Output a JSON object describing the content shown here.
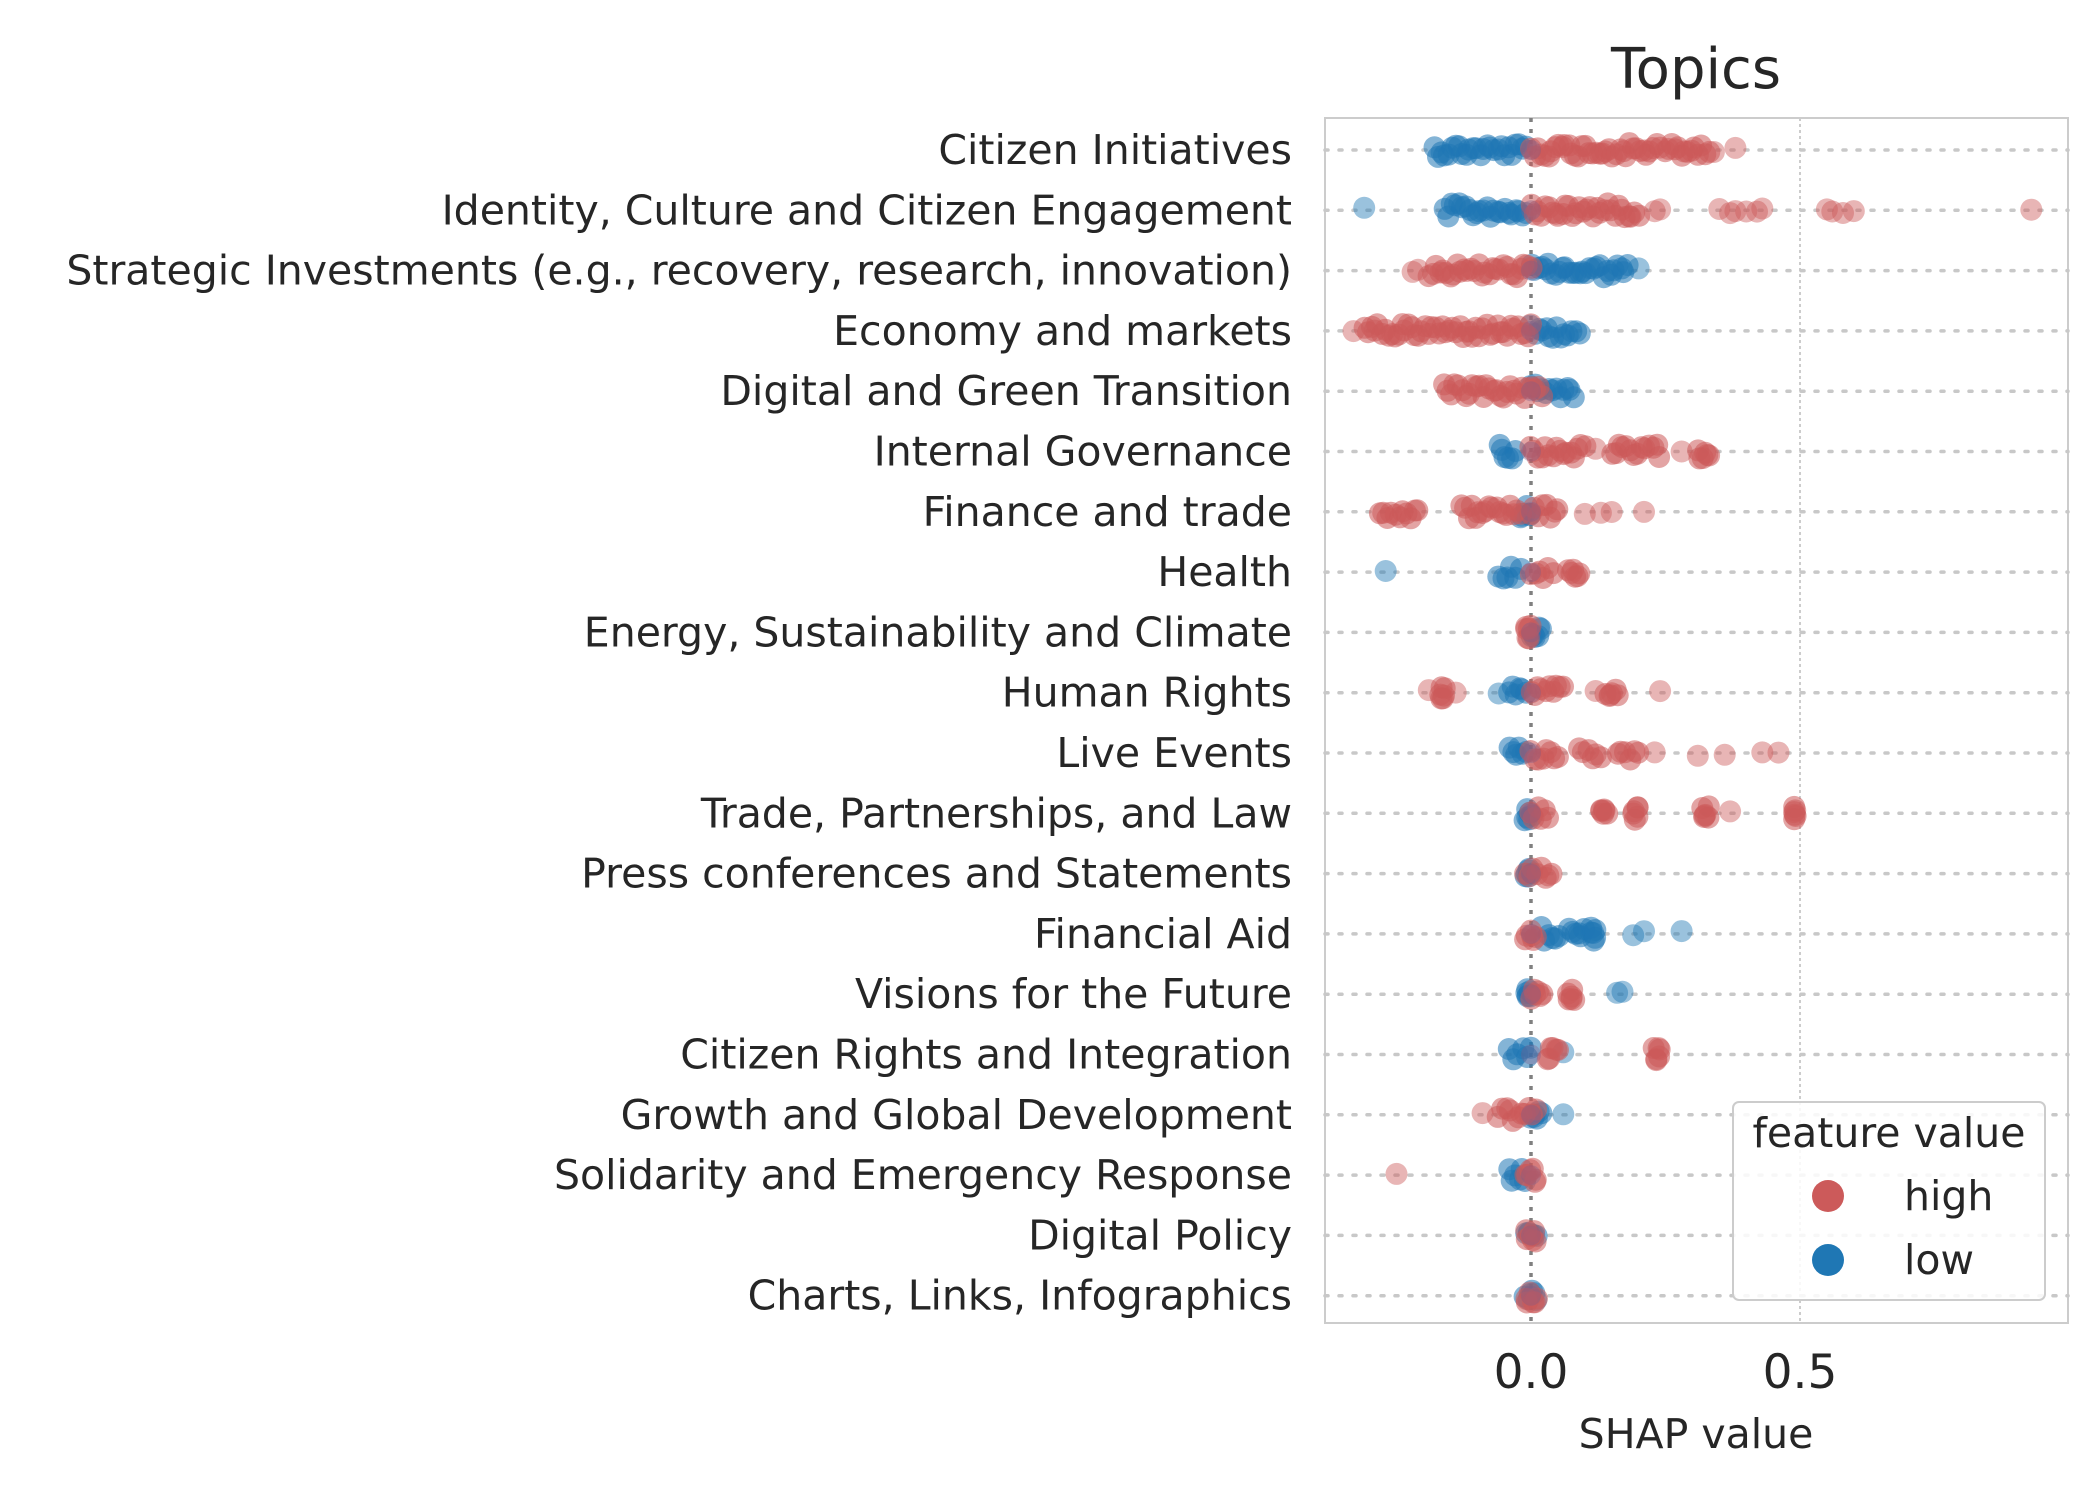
{
  "chart_data": {
    "type": "scatter",
    "title": "Topics",
    "xlabel": "SHAP value",
    "ylabel": "",
    "xlim": [
      -0.38,
      0.98
    ],
    "xticks": [
      0.0,
      0.5
    ],
    "xtick_labels": [
      "0.0",
      "0.5"
    ],
    "grid": true,
    "legend": {
      "title": "feature value",
      "placement": "lower-right",
      "entries": [
        {
          "label": "high",
          "color": "#cc5a5a"
        },
        {
          "label": "low",
          "color": "#1f77b4"
        }
      ]
    },
    "colors": {
      "high": "#cc5a5a",
      "low": "#1f77b4",
      "mixed": "#7a5d8a"
    },
    "categories": [
      "Citizen Initiatives",
      "Identity, Culture and Citizen Engagement",
      "Strategic Investments (e.g., recovery, research, innovation)",
      "Economy and markets",
      "Digital and Green Transition",
      "Internal Governance",
      "Finance and trade",
      "Health",
      "Energy, Sustainability and Climate",
      "Human Rights",
      "Live Events",
      "Trade, Partnerships, and Law",
      "Press conferences and Statements",
      "Financial Aid",
      "Visions for the Future",
      "Citizen Rights and Integration",
      "Growth and Global Development",
      "Solidarity and Emergency Response",
      "Digital Policy",
      "Charts, Links, Infographics"
    ],
    "series": [
      {
        "name": "high",
        "rows": [
          {
            "clusters": [
              [
                0.0,
                0.33
              ]
            ],
            "points": [
              0.34,
              0.38
            ]
          },
          {
            "clusters": [
              [
                0.0,
                0.2
              ]
            ],
            "points": [
              0.23,
              0.24,
              0.35,
              0.37,
              0.38,
              0.4,
              0.42,
              0.43,
              0.55,
              0.56,
              0.58,
              0.6,
              0.93
            ]
          },
          {
            "clusters": [
              [
                -0.19,
                0.0
              ]
            ],
            "points": [
              -0.22,
              -0.21
            ]
          },
          {
            "clusters": [
              [
                -0.31,
                0.0
              ]
            ],
            "points": [
              -0.33
            ]
          },
          {
            "clusters": [
              [
                -0.16,
                0.02
              ]
            ],
            "points": []
          },
          {
            "clusters": [
              [
                0.0,
                0.1
              ],
              [
                0.15,
                0.24
              ],
              [
                0.31,
                0.33
              ]
            ],
            "points": [
              0.12,
              0.28
            ]
          },
          {
            "clusters": [
              [
                -0.28,
                -0.21
              ],
              [
                -0.13,
                -0.02
              ],
              [
                0.0,
                0.05
              ]
            ],
            "points": [
              0.1,
              0.13,
              0.15,
              0.21
            ]
          },
          {
            "clusters": [
              [
                0.0,
                0.04
              ],
              [
                0.07,
                0.09
              ]
            ],
            "points": []
          },
          {
            "clusters": [
              [
                -0.01,
                0.0
              ]
            ],
            "points": []
          },
          {
            "clusters": [
              [
                -0.17,
                -0.16
              ],
              [
                0.0,
                0.06
              ],
              [
                0.14,
                0.16
              ]
            ],
            "points": [
              -0.19,
              -0.14,
              0.12,
              0.24
            ]
          },
          {
            "clusters": [
              [
                0.0,
                0.05
              ],
              [
                0.09,
                0.13
              ],
              [
                0.16,
                0.2
              ]
            ],
            "points": [
              0.23,
              0.31,
              0.36,
              0.43,
              0.46
            ]
          },
          {
            "clusters": [
              [
                0.0,
                0.03
              ],
              [
                0.13,
                0.14
              ],
              [
                0.19,
                0.2
              ],
              [
                0.32,
                0.33
              ],
              [
                0.49,
                0.49
              ]
            ],
            "points": [
              0.37
            ]
          },
          {
            "clusters": [
              [
                -0.01,
                0.04
              ]
            ],
            "points": []
          },
          {
            "clusters": [
              [
                -0.01,
                0.01
              ]
            ],
            "points": []
          },
          {
            "clusters": [
              [
                0.0,
                0.02
              ],
              [
                0.07,
                0.08
              ]
            ],
            "points": []
          },
          {
            "clusters": [
              [
                0.03,
                0.05
              ],
              [
                0.23,
                0.24
              ]
            ],
            "points": []
          },
          {
            "clusters": [
              [
                -0.06,
                0.01
              ]
            ],
            "points": [
              -0.09
            ]
          },
          {
            "clusters": [
              [
                -0.01,
                0.01
              ]
            ],
            "points": [
              -0.25
            ]
          },
          {
            "clusters": [
              [
                -0.01,
                0.01
              ]
            ],
            "points": []
          },
          {
            "clusters": [
              [
                -0.01,
                0.01
              ]
            ],
            "points": []
          }
        ]
      },
      {
        "name": "low",
        "rows": [
          {
            "clusters": [
              [
                -0.18,
                -0.01
              ]
            ],
            "points": []
          },
          {
            "clusters": [
              [
                -0.16,
                -0.01
              ]
            ],
            "points": [
              -0.31
            ]
          },
          {
            "clusters": [
              [
                0.0,
                0.18
              ]
            ],
            "points": [
              0.2
            ]
          },
          {
            "clusters": [
              [
                0.0,
                0.09
              ]
            ],
            "points": []
          },
          {
            "clusters": [
              [
                0.0,
                0.08
              ]
            ],
            "points": []
          },
          {
            "clusters": [
              [
                -0.06,
                -0.03
              ]
            ],
            "points": []
          },
          {
            "clusters": [
              [
                -0.02,
                0.0
              ]
            ],
            "points": []
          },
          {
            "clusters": [
              [
                -0.06,
                -0.02
              ]
            ],
            "points": [
              -0.27
            ]
          },
          {
            "clusters": [
              [
                0.0,
                0.02
              ]
            ],
            "points": []
          },
          {
            "clusters": [
              [
                -0.04,
                -0.01
              ]
            ],
            "points": [
              -0.06
            ]
          },
          {
            "clusters": [
              [
                -0.04,
                -0.01
              ]
            ],
            "points": []
          },
          {
            "clusters": [
              [
                -0.01,
                0.0
              ]
            ],
            "points": []
          },
          {
            "clusters": [
              [
                -0.01,
                0.0
              ]
            ],
            "points": []
          },
          {
            "clusters": [
              [
                0.02,
                0.05
              ],
              [
                0.07,
                0.1
              ],
              [
                0.11,
                0.12
              ]
            ],
            "points": [
              0.19,
              0.21,
              0.28
            ]
          },
          {
            "clusters": [
              [
                -0.01,
                0.0
              ]
            ],
            "points": [
              0.16,
              0.17
            ]
          },
          {
            "clusters": [
              [
                -0.04,
                0.0
              ]
            ],
            "points": [
              0.06
            ]
          },
          {
            "clusters": [
              [
                0.0,
                0.02
              ]
            ],
            "points": [
              0.06
            ]
          },
          {
            "clusters": [
              [
                -0.04,
                -0.01
              ]
            ],
            "points": []
          },
          {
            "clusters": [
              [
                -0.01,
                0.01
              ]
            ],
            "points": []
          },
          {
            "clusters": [
              [
                -0.01,
                0.01
              ]
            ],
            "points": []
          }
        ]
      }
    ]
  }
}
